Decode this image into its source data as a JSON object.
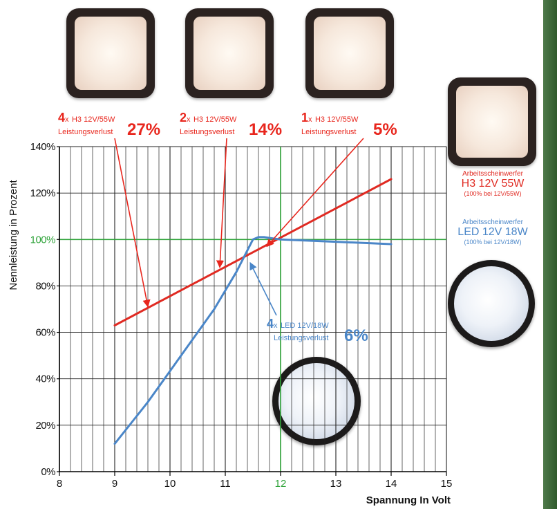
{
  "chart_data": {
    "type": "line",
    "xlabel": "Spannung In Volt",
    "ylabel": "Nennleistung in Prozent",
    "xlim": [
      8,
      15
    ],
    "ylim": [
      0,
      140
    ],
    "x_ticks": [
      "8",
      "9",
      "10",
      "11",
      "12",
      "13",
      "14",
      "15"
    ],
    "y_ticks": [
      "0%",
      "20%",
      "40%",
      "60%",
      "80%",
      "100%",
      "120%",
      "140%"
    ],
    "grid": "on",
    "reference_lines": {
      "x": 12,
      "y": 100,
      "color": "#2fa33a"
    },
    "series": [
      {
        "name": "H3 12V 55W",
        "color": "#e02a22",
        "x": [
          9,
          14
        ],
        "y": [
          63,
          126
        ]
      },
      {
        "name": "LED 12V 18W",
        "color": "#4a86c8",
        "x": [
          9.0,
          9.3,
          9.6,
          9.9,
          10.2,
          10.5,
          10.8,
          11.0,
          11.2,
          11.35,
          11.5,
          11.6,
          11.7,
          12.0,
          13.0,
          14.0
        ],
        "y": [
          12,
          21,
          30,
          40,
          50,
          60,
          70,
          78,
          86,
          93,
          100,
          101,
          101,
          100,
          99,
          98
        ]
      }
    ],
    "annotations": [
      {
        "count": "4",
        "sep": "x",
        "model": "H3 12V/55W",
        "loss_label": "Leistungsverlust",
        "value": "27%",
        "target_x": 9.6,
        "target_y": 71
      },
      {
        "count": "2",
        "sep": "x",
        "model": "H3 12V/55W",
        "loss_label": "Leistungsverlust",
        "value": "14%",
        "target_x": 10.9,
        "target_y": 88
      },
      {
        "count": "1",
        "sep": "x",
        "model": "H3 12V/55W",
        "loss_label": "Leistungsverlust",
        "value": "5%",
        "target_x": 11.75,
        "target_y": 97
      },
      {
        "count": "4",
        "sep": "x",
        "model": "LED 12V/18W",
        "loss_label": "Leistungsverlust",
        "value": "6%",
        "target_x": 11.45,
        "target_y": 90
      }
    ]
  },
  "legend": {
    "h3": {
      "caption": "Arbeitsscheinwerfer",
      "model": "H3 12V 55W",
      "note": "(100% bei 12V/55W)",
      "color": "#e02a22"
    },
    "led": {
      "caption": "Arbeitsscheinwerfer",
      "model": "LED 12V 18W",
      "note": "(100% bei 12V/18W)",
      "color": "#4a86c8"
    }
  },
  "icons": [
    "square-halogen-lamp-icon",
    "round-led-lamp-icon"
  ]
}
